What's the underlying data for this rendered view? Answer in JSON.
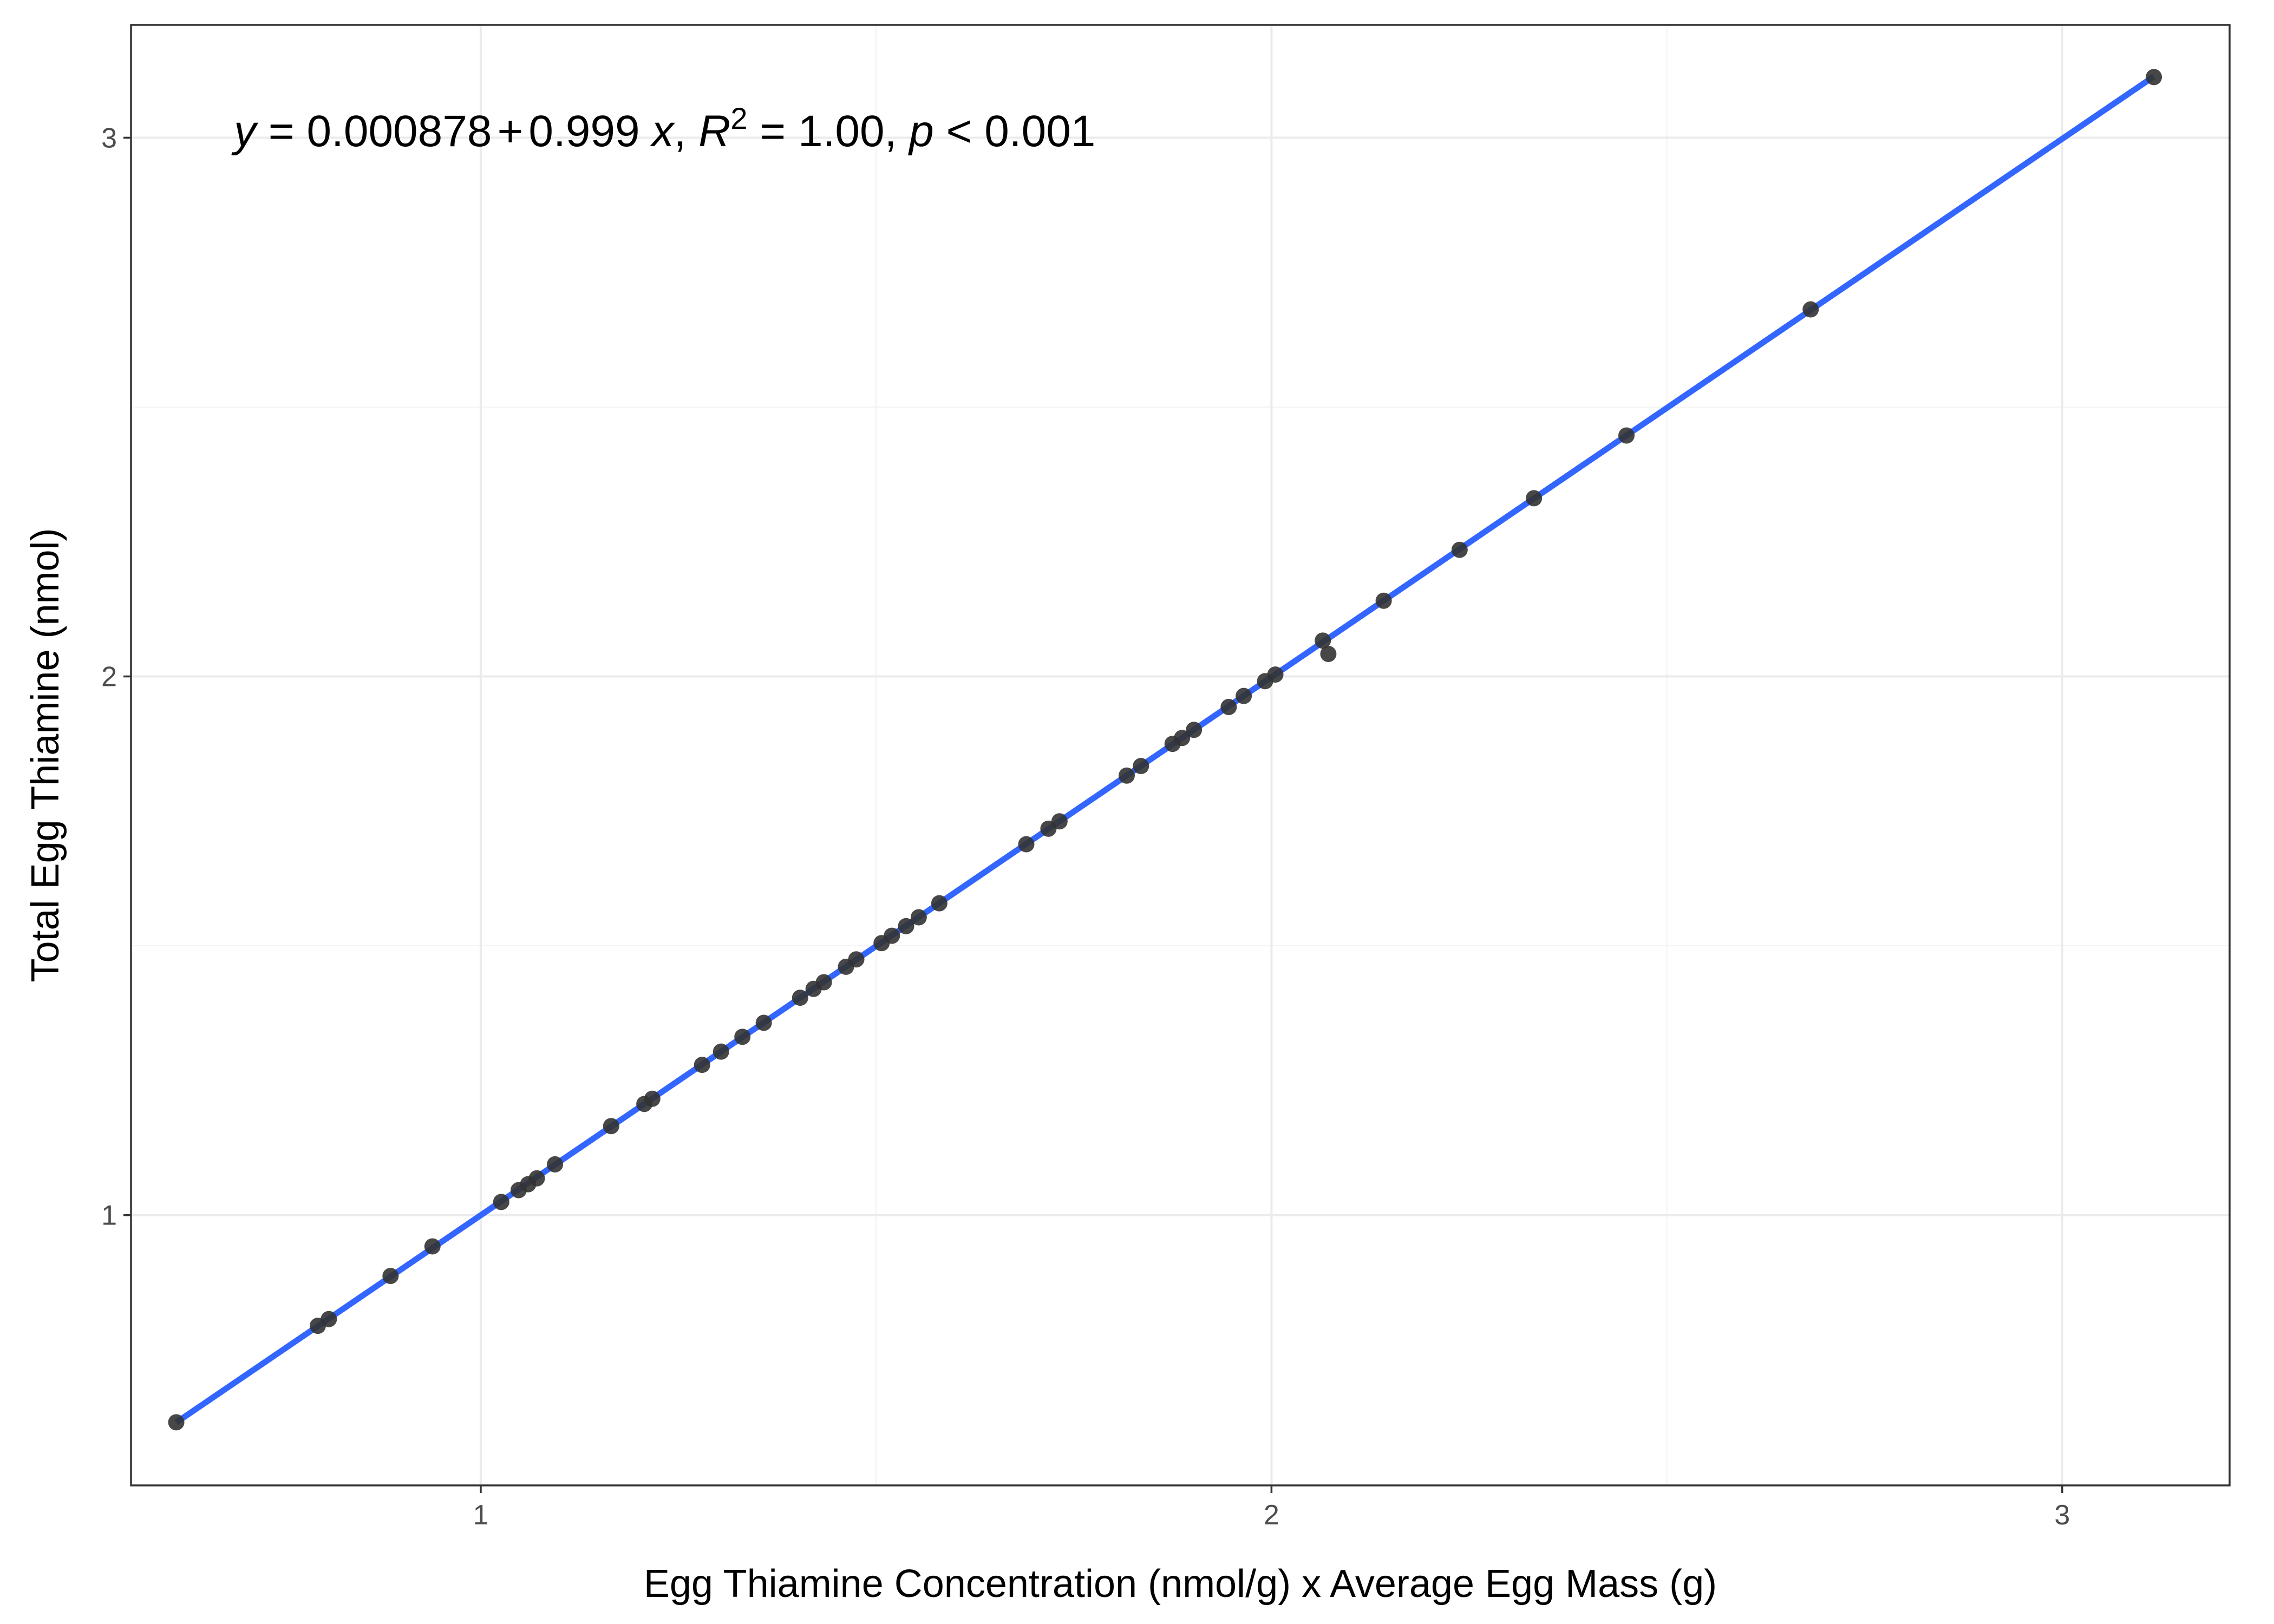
{
  "chart_data": {
    "type": "scatter",
    "title": "",
    "xlabel": "Egg Thiamine Concentration (nmol/g) x Average Egg Mass (g)",
    "ylabel": "Total Egg Thiamine (nmol)",
    "xlim": [
      0.5577,
      3.2117
    ],
    "ylim": [
      0.4983,
      3.2094
    ],
    "x_ticks": [
      1,
      2,
      3
    ],
    "x_tick_labels": [
      "1",
      "2",
      "3"
    ],
    "y_ticks": [
      1,
      2,
      3
    ],
    "y_tick_labels": [
      "1",
      "2",
      "3"
    ],
    "grid": true,
    "legend": "none",
    "colors": {
      "points": "#333333",
      "fit_line": "#3366ff",
      "grid_major": "#ebebeb",
      "grid_minor": "#f2f2f2",
      "panel_border": "#333333",
      "tick_text": "#4d4d4d"
    },
    "annotation": {
      "y_var": "y",
      "eq_mid": " = 0.000878",
      "op": "+",
      "slope": "0.999",
      "x_var": "x",
      "sep1": ", ",
      "r_var": "R",
      "r_exp": "2",
      "r_val": " = 1.00, ",
      "p_var": "p",
      "p_val": " < 0.001"
    },
    "fit": {
      "intercept": 0.000878,
      "slope": 0.999,
      "x_range": [
        0.6149,
        3.1159
      ]
    },
    "points": [
      {
        "x": 0.6149,
        "y": 0.6155
      },
      {
        "x": 0.7939,
        "y": 0.7946
      },
      {
        "x": 0.8079,
        "y": 0.8071
      },
      {
        "x": 0.8859,
        "y": 0.8871
      },
      {
        "x": 0.9389,
        "y": 0.942
      },
      {
        "x": 1.0259,
        "y": 1.0245
      },
      {
        "x": 1.0479,
        "y": 1.0464
      },
      {
        "x": 1.0599,
        "y": 1.0574
      },
      {
        "x": 1.0709,
        "y": 1.0683
      },
      {
        "x": 1.0939,
        "y": 1.0943
      },
      {
        "x": 1.1649,
        "y": 1.1653
      },
      {
        "x": 1.2069,
        "y": 1.2064
      },
      {
        "x": 1.2169,
        "y": 1.216
      },
      {
        "x": 1.2799,
        "y": 1.279
      },
      {
        "x": 1.3039,
        "y": 1.3036
      },
      {
        "x": 1.3309,
        "y": 1.331
      },
      {
        "x": 1.3579,
        "y": 1.357
      },
      {
        "x": 1.4039,
        "y": 1.4036
      },
      {
        "x": 1.4209,
        "y": 1.42
      },
      {
        "x": 1.4339,
        "y": 1.4323
      },
      {
        "x": 1.4619,
        "y": 1.4611
      },
      {
        "x": 1.4749,
        "y": 1.4748
      },
      {
        "x": 1.5069,
        "y": 1.5049
      },
      {
        "x": 1.5199,
        "y": 1.5186
      },
      {
        "x": 1.5379,
        "y": 1.5364
      },
      {
        "x": 1.5539,
        "y": 1.5529
      },
      {
        "x": 1.5799,
        "y": 1.5789
      },
      {
        "x": 1.6899,
        "y": 1.6885
      },
      {
        "x": 1.7179,
        "y": 1.7173
      },
      {
        "x": 1.7319,
        "y": 1.731
      },
      {
        "x": 1.8169,
        "y": 1.8159
      },
      {
        "x": 1.8349,
        "y": 1.8337
      },
      {
        "x": 1.8749,
        "y": 1.8748
      },
      {
        "x": 1.8869,
        "y": 1.8858
      },
      {
        "x": 1.9019,
        "y": 1.9008
      },
      {
        "x": 1.9459,
        "y": 1.9433
      },
      {
        "x": 1.9649,
        "y": 1.9638
      },
      {
        "x": 1.9919,
        "y": 1.9912
      },
      {
        "x": 2.0049,
        "y": 2.0035
      },
      {
        "x": 2.0649,
        "y": 2.0665
      },
      {
        "x": 2.0719,
        "y": 2.0418
      },
      {
        "x": 2.1419,
        "y": 2.1405
      },
      {
        "x": 2.2379,
        "y": 2.235
      },
      {
        "x": 2.3319,
        "y": 2.3308
      },
      {
        "x": 2.4489,
        "y": 2.4472
      },
      {
        "x": 2.6819,
        "y": 2.6813
      },
      {
        "x": 3.1159,
        "y": 3.1126
      }
    ]
  }
}
